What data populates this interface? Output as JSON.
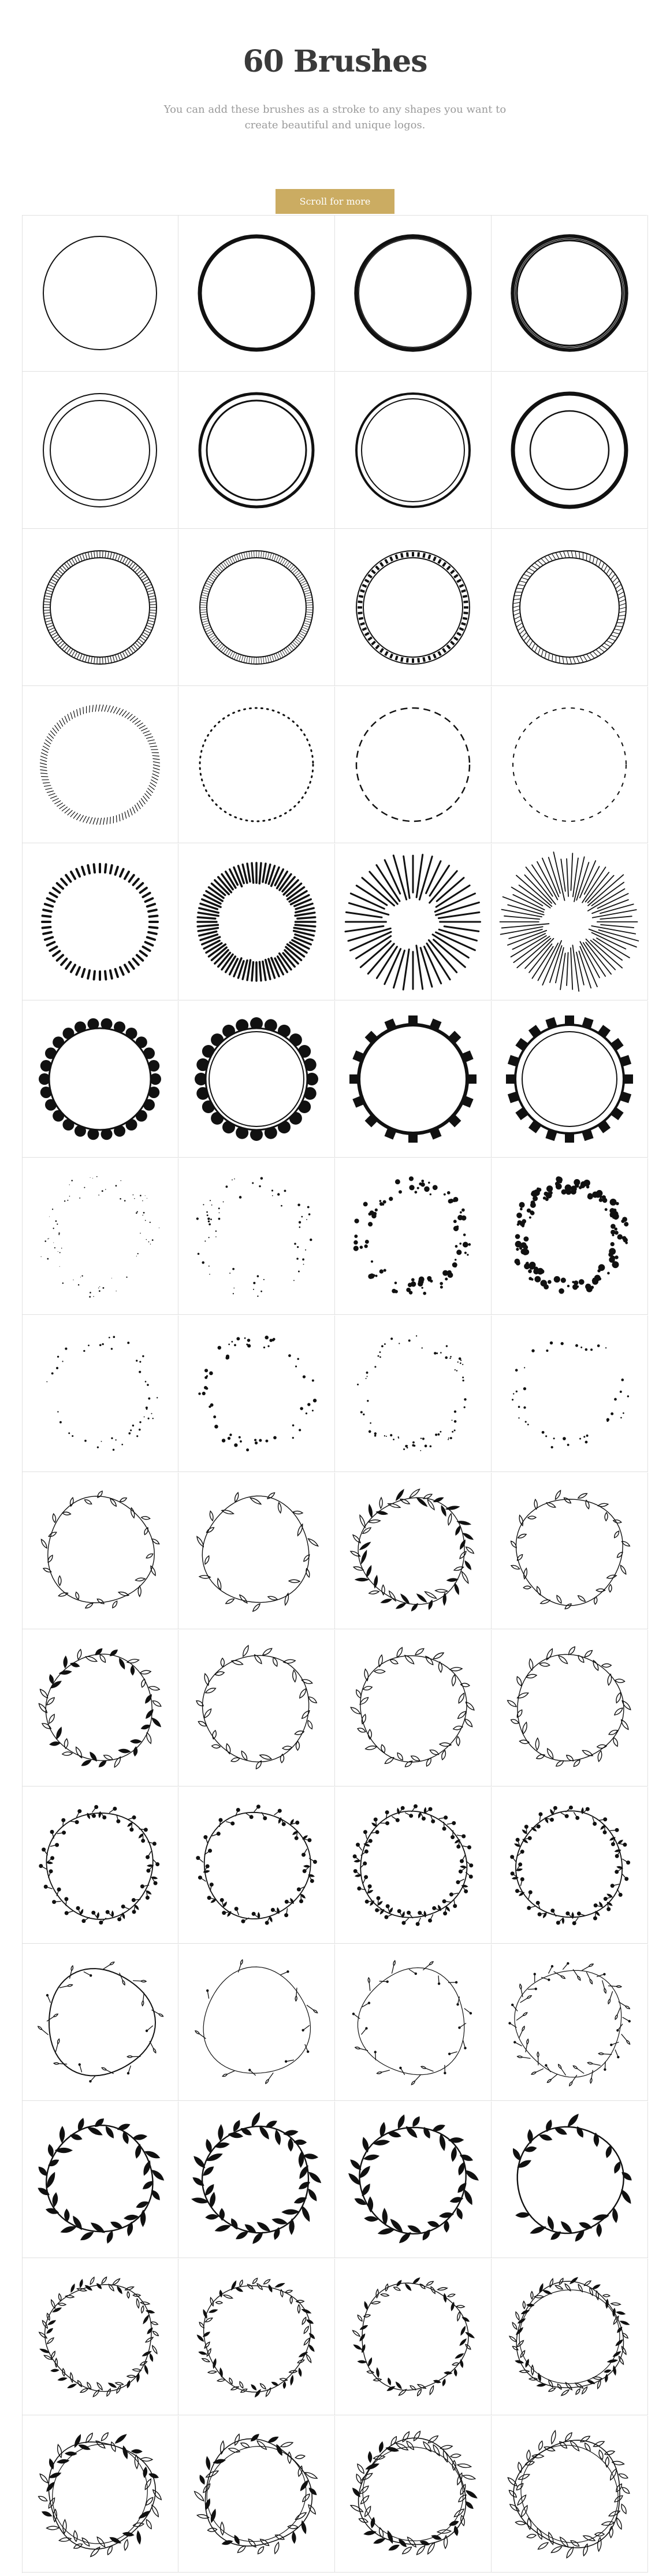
{
  "header": {
    "title": "60 Brushes",
    "subtitle": "You can add these brushes as a stroke to any shapes you want to create beautiful and unique logos.",
    "button_label": "Scroll for more"
  },
  "colors": {
    "accent": "#cbac62",
    "ink": "#111111",
    "grid_line": "#e0e0e0"
  },
  "grid": {
    "columns": 4,
    "rows": 15,
    "row_styles": [
      "solid-ring",
      "double-ring",
      "patterned-ring",
      "dotted-ring",
      "radial-lines",
      "scalloped-ring",
      "scatter-dots",
      "sparse-dots",
      "vine-wreath",
      "leaf-wreath",
      "berry-wreath",
      "sparse-floral-wreath",
      "bold-leaf-wreath",
      "dense-floral-wreath",
      "ornate-wreath"
    ]
  }
}
